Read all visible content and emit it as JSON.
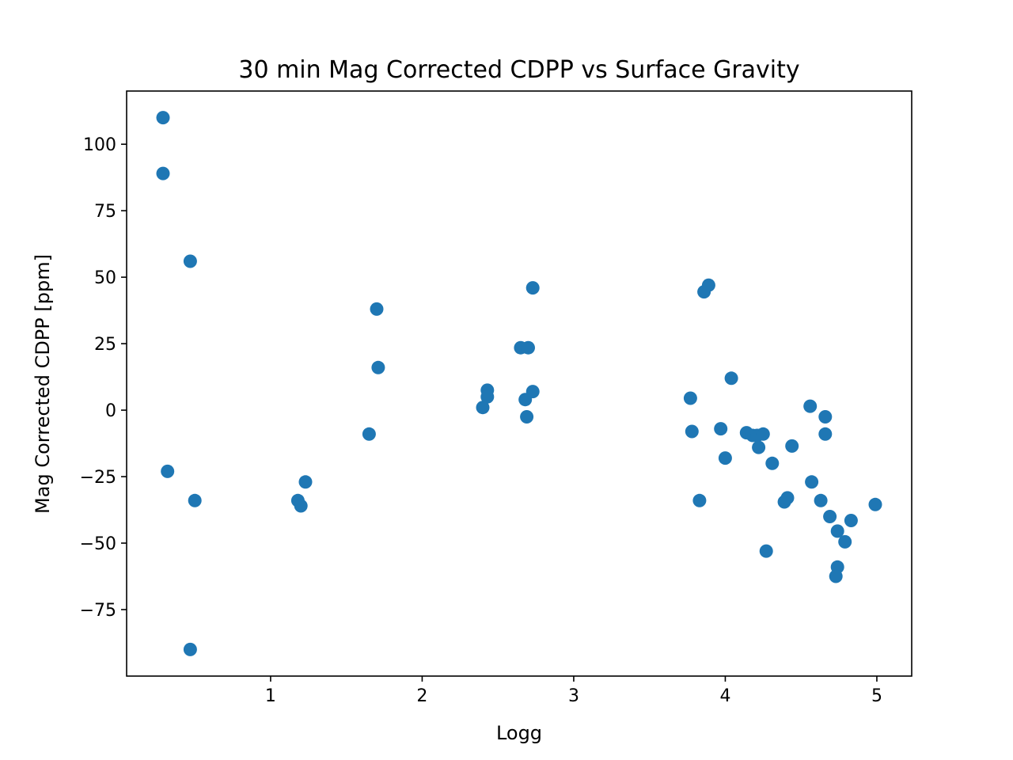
{
  "chart_data": {
    "type": "scatter",
    "title": "30 min Mag Corrected CDPP vs Surface Gravity",
    "xlabel": "Logg",
    "ylabel": "Mag Corrected CDPP [ppm]",
    "xlim": [
      0.05,
      5.23
    ],
    "ylim": [
      -100,
      120
    ],
    "xticks": [
      1,
      2,
      3,
      4,
      5
    ],
    "yticks": [
      -75,
      -50,
      -25,
      0,
      25,
      50,
      75,
      100
    ],
    "xtick_labels": [
      "1",
      "2",
      "3",
      "4",
      "5"
    ],
    "ytick_labels": [
      "−75",
      "−50",
      "−25",
      "0",
      "25",
      "50",
      "75",
      "100"
    ],
    "grid": false,
    "color": "#1f77b4",
    "x": [
      0.29,
      0.29,
      0.47,
      0.32,
      0.5,
      0.47,
      1.18,
      1.2,
      1.23,
      1.7,
      1.71,
      1.65,
      2.73,
      2.65,
      2.7,
      2.43,
      2.43,
      2.4,
      2.68,
      2.73,
      2.69,
      3.89,
      3.86,
      4.04,
      3.77,
      3.78,
      3.83,
      3.97,
      4.0,
      4.14,
      4.18,
      4.21,
      4.25,
      4.22,
      4.31,
      4.44,
      4.27,
      4.39,
      4.41,
      4.56,
      4.57,
      4.66,
      4.66,
      4.63,
      4.69,
      4.74,
      4.79,
      4.83,
      4.74,
      4.73,
      4.99
    ],
    "y": [
      110,
      89,
      56,
      -23,
      -34,
      -90,
      -34,
      -36,
      -27,
      38,
      16,
      -9,
      46,
      23.5,
      23.5,
      7.5,
      5,
      1,
      4,
      7,
      -2.5,
      47,
      44.5,
      12,
      4.5,
      -8,
      -34,
      -7,
      -18,
      -8.5,
      -9.5,
      -9.5,
      -9,
      -14,
      -20,
      -13.5,
      -53,
      -34.5,
      -33,
      1.5,
      -27,
      -2.5,
      -9,
      -34,
      -40,
      -45.5,
      -49.5,
      -41.5,
      -59,
      -62.5,
      -35.5
    ]
  }
}
